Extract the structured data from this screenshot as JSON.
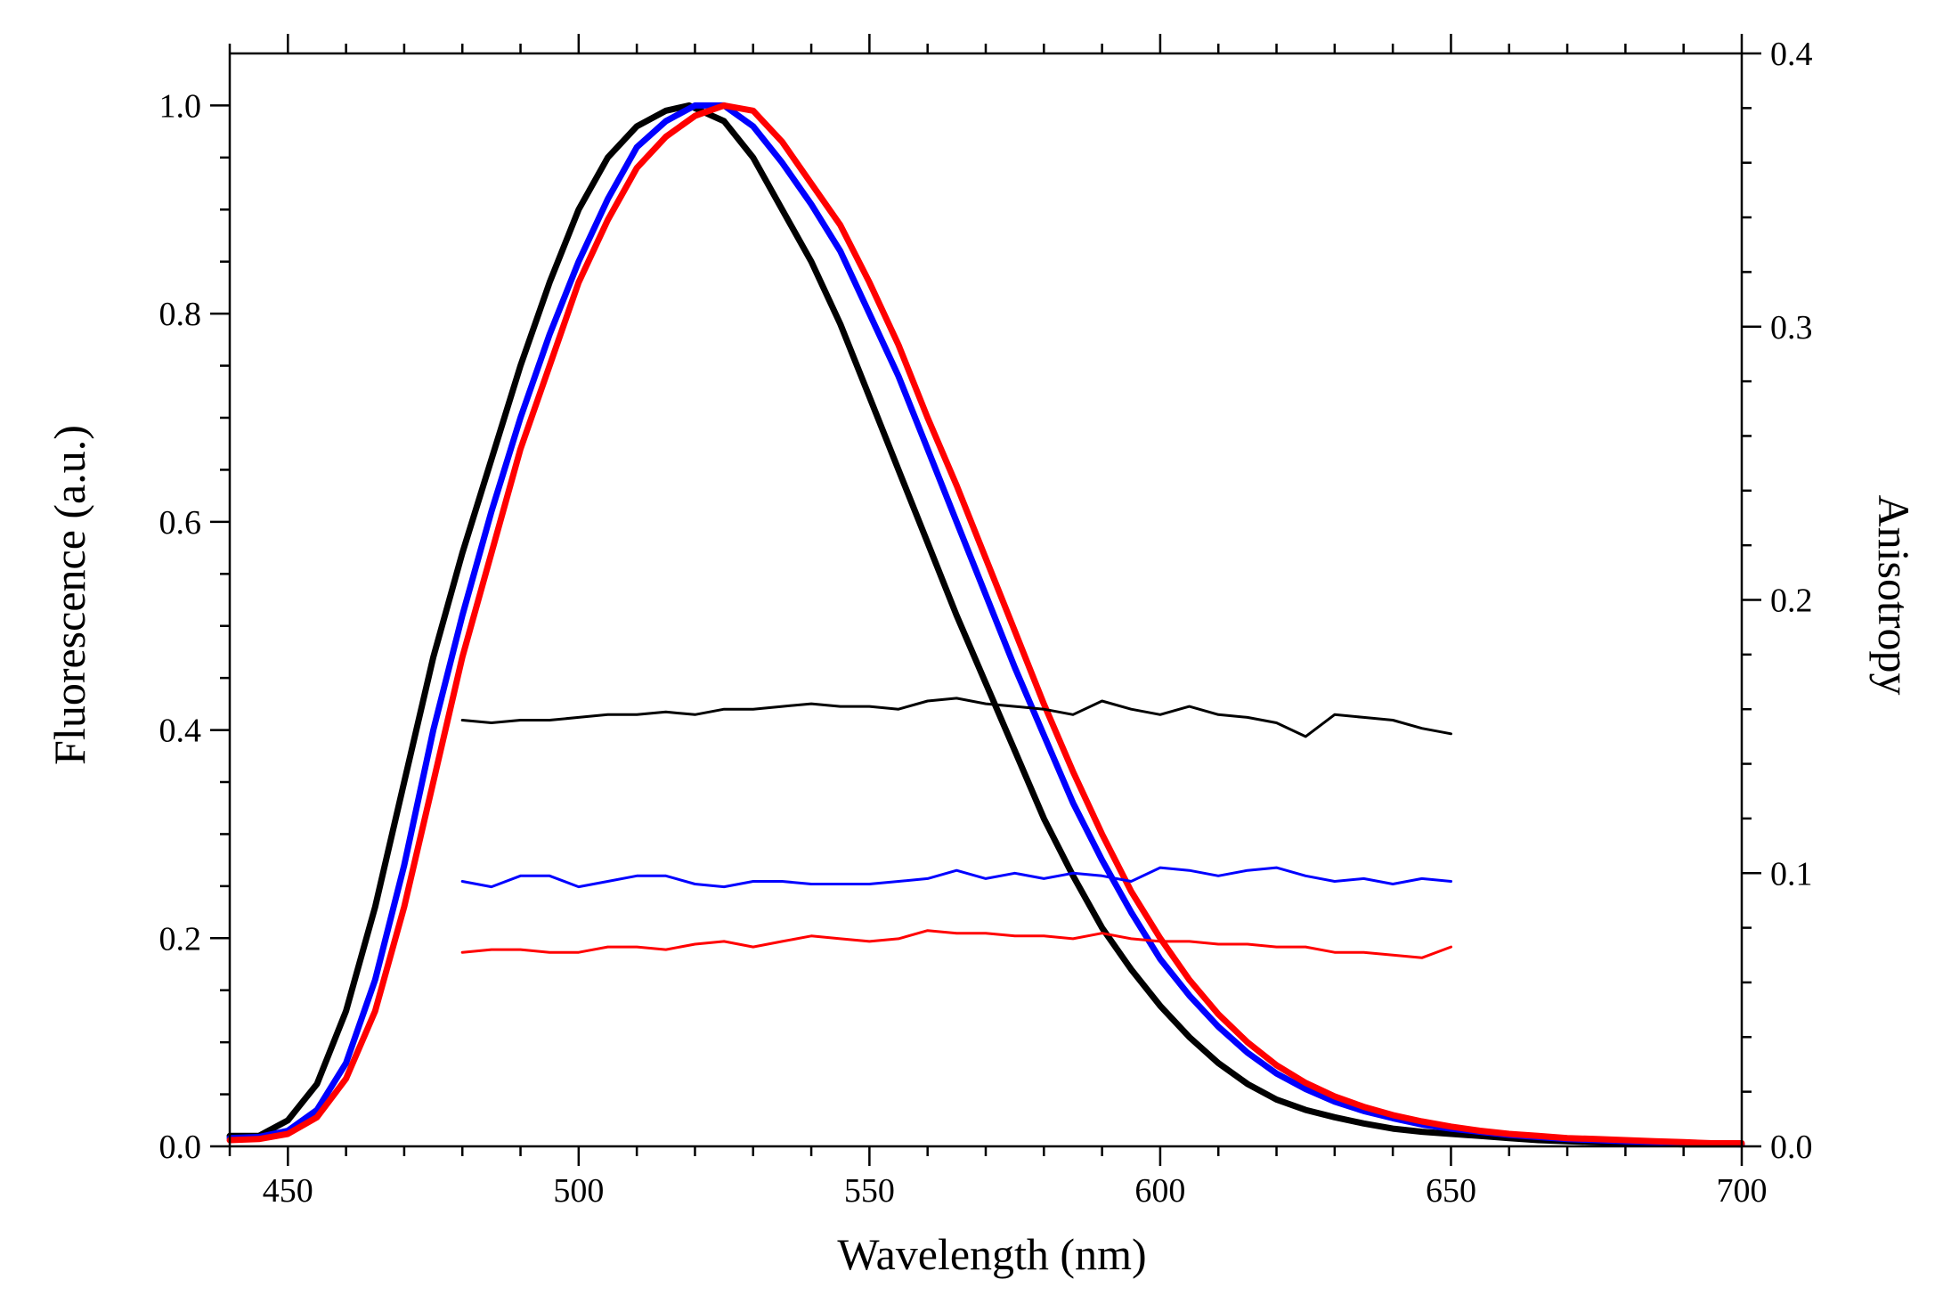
{
  "chart_data": {
    "type": "line",
    "title": "",
    "xlabel": "Wavelength (nm)",
    "ylabel": "Fluorescence (a.u.)",
    "y2label": "Anisotropy",
    "xlim": [
      440,
      700
    ],
    "ylim": [
      0,
      1.05
    ],
    "y2lim": [
      0,
      0.4
    ],
    "x_ticks": [
      450,
      500,
      550,
      600,
      650,
      700
    ],
    "x_tick_labels": [
      "450",
      "500",
      "550",
      "600",
      "650",
      "700"
    ],
    "y_ticks": [
      0,
      0.2,
      0.4,
      0.6,
      0.8,
      1.0
    ],
    "y_tick_labels": [
      "0.0",
      "0.2",
      "0.4",
      "0.6",
      "0.8",
      "1.0"
    ],
    "y2_ticks": [
      0,
      0.1,
      0.2,
      0.3,
      0.4
    ],
    "y2_tick_labels": [
      "0.0",
      "0.1",
      "0.2",
      "0.3",
      "0.4"
    ],
    "grid": false,
    "legend": "none",
    "series": [
      {
        "name": "fluorescence-black",
        "color": "#000000",
        "axis": "left",
        "x": [
          440,
          445,
          450,
          455,
          460,
          465,
          470,
          475,
          480,
          485,
          490,
          495,
          500,
          505,
          510,
          515,
          519,
          525,
          530,
          535,
          540,
          545,
          550,
          555,
          560,
          565,
          570,
          575,
          580,
          585,
          590,
          595,
          600,
          605,
          610,
          615,
          620,
          625,
          630,
          635,
          640,
          645,
          650,
          655,
          660,
          665,
          670,
          675,
          680,
          685,
          690,
          695,
          700
        ],
        "values": [
          0.01,
          0.01,
          0.025,
          0.06,
          0.13,
          0.23,
          0.35,
          0.47,
          0.57,
          0.66,
          0.75,
          0.83,
          0.9,
          0.95,
          0.98,
          0.995,
          1.0,
          0.985,
          0.95,
          0.9,
          0.85,
          0.79,
          0.72,
          0.65,
          0.58,
          0.51,
          0.445,
          0.38,
          0.315,
          0.26,
          0.21,
          0.17,
          0.135,
          0.105,
          0.08,
          0.06,
          0.045,
          0.035,
          0.028,
          0.022,
          0.017,
          0.014,
          0.012,
          0.01,
          0.008,
          0.006,
          0.005,
          0.004,
          0.003,
          0.003,
          0.002,
          0.002,
          0.002
        ]
      },
      {
        "name": "fluorescence-blue",
        "color": "#0000ff",
        "axis": "left",
        "x": [
          440,
          445,
          450,
          455,
          460,
          465,
          470,
          475,
          480,
          485,
          490,
          495,
          500,
          505,
          510,
          515,
          520,
          525,
          530,
          535,
          540,
          545,
          550,
          555,
          560,
          565,
          570,
          575,
          580,
          585,
          590,
          595,
          600,
          605,
          610,
          615,
          620,
          625,
          630,
          635,
          640,
          645,
          650,
          655,
          660,
          665,
          670,
          675,
          680,
          685,
          690,
          695,
          700
        ],
        "values": [
          0.008,
          0.009,
          0.015,
          0.035,
          0.08,
          0.16,
          0.27,
          0.4,
          0.51,
          0.61,
          0.7,
          0.78,
          0.85,
          0.91,
          0.96,
          0.985,
          1.0,
          1.0,
          0.98,
          0.945,
          0.905,
          0.86,
          0.8,
          0.74,
          0.67,
          0.6,
          0.53,
          0.46,
          0.395,
          0.33,
          0.275,
          0.225,
          0.18,
          0.145,
          0.115,
          0.09,
          0.07,
          0.055,
          0.043,
          0.034,
          0.027,
          0.021,
          0.017,
          0.014,
          0.011,
          0.009,
          0.007,
          0.006,
          0.005,
          0.004,
          0.003,
          0.003,
          0.002
        ]
      },
      {
        "name": "fluorescence-red",
        "color": "#ff0000",
        "axis": "left",
        "x": [
          440,
          445,
          450,
          455,
          460,
          465,
          470,
          475,
          480,
          485,
          490,
          495,
          500,
          505,
          510,
          515,
          520,
          525,
          530,
          535,
          540,
          545,
          550,
          555,
          560,
          565,
          570,
          575,
          580,
          585,
          590,
          595,
          600,
          605,
          610,
          615,
          620,
          625,
          630,
          635,
          640,
          645,
          650,
          655,
          660,
          665,
          670,
          675,
          680,
          685,
          690,
          695,
          700
        ],
        "values": [
          0.006,
          0.007,
          0.012,
          0.028,
          0.065,
          0.13,
          0.23,
          0.35,
          0.47,
          0.57,
          0.67,
          0.75,
          0.83,
          0.89,
          0.94,
          0.97,
          0.99,
          1.0,
          0.995,
          0.965,
          0.925,
          0.885,
          0.83,
          0.77,
          0.7,
          0.635,
          0.565,
          0.495,
          0.425,
          0.36,
          0.3,
          0.245,
          0.2,
          0.16,
          0.127,
          0.1,
          0.078,
          0.061,
          0.048,
          0.038,
          0.03,
          0.024,
          0.019,
          0.015,
          0.012,
          0.01,
          0.008,
          0.007,
          0.006,
          0.005,
          0.004,
          0.003,
          0.003
        ]
      },
      {
        "name": "anisotropy-black",
        "color": "#000000",
        "axis": "right",
        "x": [
          480,
          485,
          490,
          495,
          500,
          505,
          510,
          515,
          520,
          525,
          530,
          535,
          540,
          545,
          550,
          555,
          560,
          565,
          570,
          575,
          580,
          585,
          590,
          595,
          600,
          605,
          610,
          615,
          620,
          625,
          630,
          635,
          640,
          645,
          650
        ],
        "values": [
          0.156,
          0.155,
          0.156,
          0.156,
          0.157,
          0.158,
          0.158,
          0.159,
          0.158,
          0.16,
          0.16,
          0.161,
          0.162,
          0.161,
          0.161,
          0.16,
          0.163,
          0.164,
          0.162,
          0.161,
          0.16,
          0.158,
          0.163,
          0.16,
          0.158,
          0.161,
          0.158,
          0.157,
          0.155,
          0.15,
          0.158,
          0.157,
          0.156,
          0.153,
          0.151
        ]
      },
      {
        "name": "anisotropy-blue",
        "color": "#0000ff",
        "axis": "right",
        "x": [
          480,
          485,
          490,
          495,
          500,
          505,
          510,
          515,
          520,
          525,
          530,
          535,
          540,
          545,
          550,
          555,
          560,
          565,
          570,
          575,
          580,
          585,
          590,
          595,
          600,
          605,
          610,
          615,
          620,
          625,
          630,
          635,
          640,
          645,
          650
        ],
        "values": [
          0.097,
          0.095,
          0.099,
          0.099,
          0.095,
          0.097,
          0.099,
          0.099,
          0.096,
          0.095,
          0.097,
          0.097,
          0.096,
          0.096,
          0.096,
          0.097,
          0.098,
          0.101,
          0.098,
          0.1,
          0.098,
          0.1,
          0.099,
          0.097,
          0.102,
          0.101,
          0.099,
          0.101,
          0.102,
          0.099,
          0.097,
          0.098,
          0.096,
          0.098,
          0.097
        ]
      },
      {
        "name": "anisotropy-red",
        "color": "#ff0000",
        "axis": "right",
        "x": [
          480,
          485,
          490,
          495,
          500,
          505,
          510,
          515,
          520,
          525,
          530,
          535,
          540,
          545,
          550,
          555,
          560,
          565,
          570,
          575,
          580,
          585,
          590,
          595,
          600,
          605,
          610,
          615,
          620,
          625,
          630,
          635,
          640,
          645,
          650
        ],
        "values": [
          0.071,
          0.072,
          0.072,
          0.071,
          0.071,
          0.073,
          0.073,
          0.072,
          0.074,
          0.075,
          0.073,
          0.075,
          0.077,
          0.076,
          0.075,
          0.076,
          0.079,
          0.078,
          0.078,
          0.077,
          0.077,
          0.076,
          0.078,
          0.076,
          0.075,
          0.075,
          0.074,
          0.074,
          0.073,
          0.073,
          0.071,
          0.071,
          0.07,
          0.069,
          0.073
        ]
      }
    ]
  }
}
